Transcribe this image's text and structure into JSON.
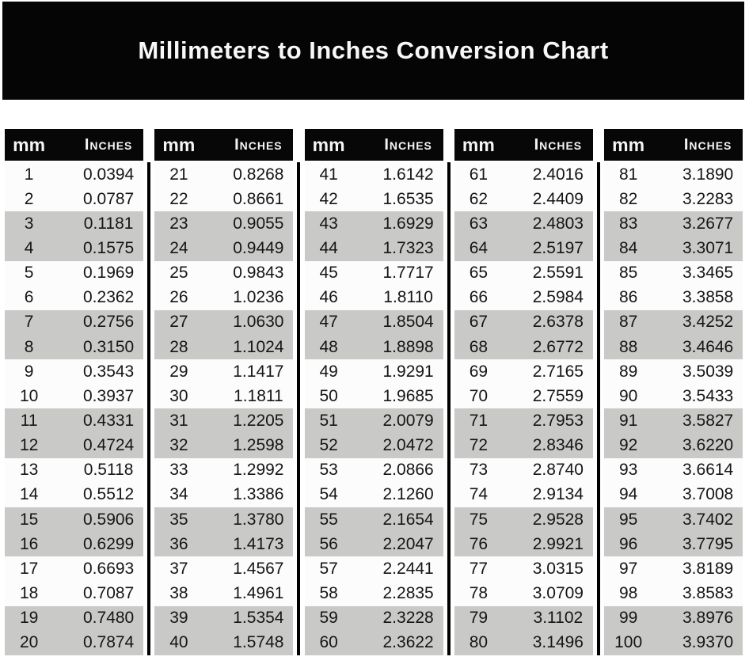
{
  "title": "Millimeters to Inches Conversion Chart",
  "column_headers": {
    "mm": "mm",
    "inches": "Inches"
  },
  "colors": {
    "banner_bg": "#050505",
    "header_bg": "#070707",
    "stripe_gray": "#c9c9c7",
    "row_white": "#fcfcfc",
    "separator": "#000000",
    "title_text": "#f8f8f8",
    "value_text": "#151515"
  },
  "chart_data": {
    "type": "table",
    "title": "Millimeters to Inches Conversion Chart",
    "column_headers": [
      "mm",
      "Inches"
    ],
    "stripe_pattern": "rows paired: 2 white, 2 gray, repeating",
    "groups": [
      {
        "rows": [
          [
            "1",
            "0.0394"
          ],
          [
            "2",
            "0.0787"
          ],
          [
            "3",
            "0.1181"
          ],
          [
            "4",
            "0.1575"
          ],
          [
            "5",
            "0.1969"
          ],
          [
            "6",
            "0.2362"
          ],
          [
            "7",
            "0.2756"
          ],
          [
            "8",
            "0.3150"
          ],
          [
            "9",
            "0.3543"
          ],
          [
            "10",
            "0.3937"
          ],
          [
            "11",
            "0.4331"
          ],
          [
            "12",
            "0.4724"
          ],
          [
            "13",
            "0.5118"
          ],
          [
            "14",
            "0.5512"
          ],
          [
            "15",
            "0.5906"
          ],
          [
            "16",
            "0.6299"
          ],
          [
            "17",
            "0.6693"
          ],
          [
            "18",
            "0.7087"
          ],
          [
            "19",
            "0.7480"
          ],
          [
            "20",
            "0.7874"
          ]
        ]
      },
      {
        "rows": [
          [
            "21",
            "0.8268"
          ],
          [
            "22",
            "0.8661"
          ],
          [
            "23",
            "0.9055"
          ],
          [
            "24",
            "0.9449"
          ],
          [
            "25",
            "0.9843"
          ],
          [
            "26",
            "1.0236"
          ],
          [
            "27",
            "1.0630"
          ],
          [
            "28",
            "1.1024"
          ],
          [
            "29",
            "1.1417"
          ],
          [
            "30",
            "1.1811"
          ],
          [
            "31",
            "1.2205"
          ],
          [
            "32",
            "1.2598"
          ],
          [
            "33",
            "1.2992"
          ],
          [
            "34",
            "1.3386"
          ],
          [
            "35",
            "1.3780"
          ],
          [
            "36",
            "1.4173"
          ],
          [
            "37",
            "1.4567"
          ],
          [
            "38",
            "1.4961"
          ],
          [
            "39",
            "1.5354"
          ],
          [
            "40",
            "1.5748"
          ]
        ]
      },
      {
        "rows": [
          [
            "41",
            "1.6142"
          ],
          [
            "42",
            "1.6535"
          ],
          [
            "43",
            "1.6929"
          ],
          [
            "44",
            "1.7323"
          ],
          [
            "45",
            "1.7717"
          ],
          [
            "46",
            "1.8110"
          ],
          [
            "47",
            "1.8504"
          ],
          [
            "48",
            "1.8898"
          ],
          [
            "49",
            "1.9291"
          ],
          [
            "50",
            "1.9685"
          ],
          [
            "51",
            "2.0079"
          ],
          [
            "52",
            "2.0472"
          ],
          [
            "53",
            "2.0866"
          ],
          [
            "54",
            "2.1260"
          ],
          [
            "55",
            "2.1654"
          ],
          [
            "56",
            "2.2047"
          ],
          [
            "57",
            "2.2441"
          ],
          [
            "58",
            "2.2835"
          ],
          [
            "59",
            "2.3228"
          ],
          [
            "60",
            "2.3622"
          ]
        ]
      },
      {
        "rows": [
          [
            "61",
            "2.4016"
          ],
          [
            "62",
            "2.4409"
          ],
          [
            "63",
            "2.4803"
          ],
          [
            "64",
            "2.5197"
          ],
          [
            "65",
            "2.5591"
          ],
          [
            "66",
            "2.5984"
          ],
          [
            "67",
            "2.6378"
          ],
          [
            "68",
            "2.6772"
          ],
          [
            "69",
            "2.7165"
          ],
          [
            "70",
            "2.7559"
          ],
          [
            "71",
            "2.7953"
          ],
          [
            "72",
            "2.8346"
          ],
          [
            "73",
            "2.8740"
          ],
          [
            "74",
            "2.9134"
          ],
          [
            "75",
            "2.9528"
          ],
          [
            "76",
            "2.9921"
          ],
          [
            "77",
            "3.0315"
          ],
          [
            "78",
            "3.0709"
          ],
          [
            "79",
            "3.1102"
          ],
          [
            "80",
            "3.1496"
          ]
        ]
      },
      {
        "rows": [
          [
            "81",
            "3.1890"
          ],
          [
            "82",
            "3.2283"
          ],
          [
            "83",
            "3.2677"
          ],
          [
            "84",
            "3.3071"
          ],
          [
            "85",
            "3.3465"
          ],
          [
            "86",
            "3.3858"
          ],
          [
            "87",
            "3.4252"
          ],
          [
            "88",
            "3.4646"
          ],
          [
            "89",
            "3.5039"
          ],
          [
            "90",
            "3.5433"
          ],
          [
            "91",
            "3.5827"
          ],
          [
            "92",
            "3.6220"
          ],
          [
            "93",
            "3.6614"
          ],
          [
            "94",
            "3.7008"
          ],
          [
            "95",
            "3.7402"
          ],
          [
            "96",
            "3.7795"
          ],
          [
            "97",
            "3.8189"
          ],
          [
            "98",
            "3.8583"
          ],
          [
            "99",
            "3.8976"
          ],
          [
            "100",
            "3.9370"
          ]
        ]
      }
    ]
  }
}
